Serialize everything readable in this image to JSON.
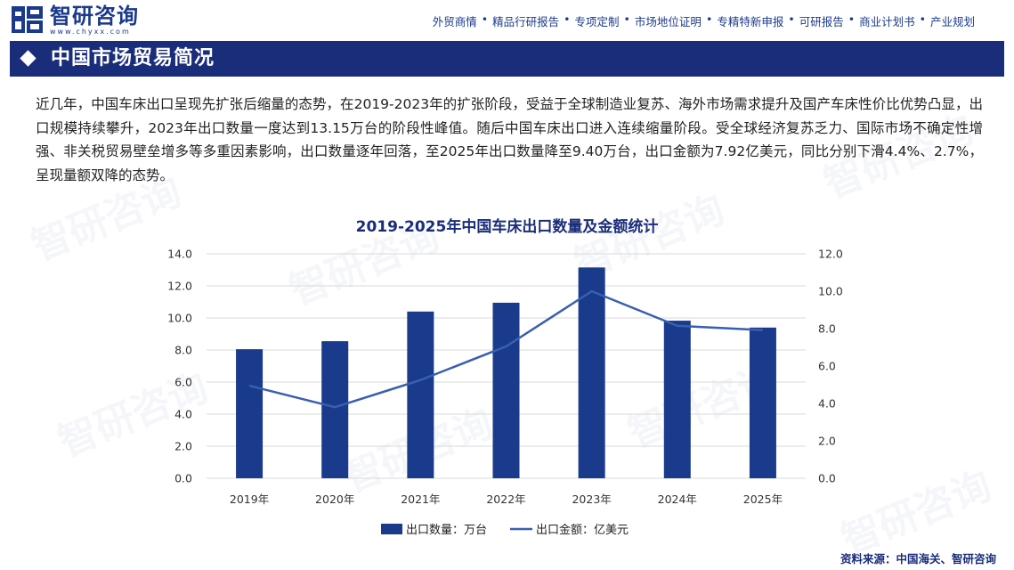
{
  "header": {
    "logo_text": "智研咨询",
    "logo_url": "www.chyxx.com",
    "nav": [
      "外贸商情",
      "精品行研报告",
      "专项定制",
      "市场地位证明",
      "专精特新申报",
      "可研报告",
      "商业计划书",
      "产业规划"
    ]
  },
  "section_title": "中国市场贸易简况",
  "paragraph": "近几年，中国车床出口呈现先扩张后缩量的态势，在2019-2023年的扩张阶段，受益于全球制造业复苏、海外市场需求提升及国产车床性价比优势凸显，出口规模持续攀升，2023年出口数量一度达到13.15万台的阶段性峰值。随后中国车床出口进入连续缩量阶段。受全球经济复苏乏力、国际市场不确定性增强、非关税贸易壁垒增多等多重因素影响，出口数量逐年回落，至2025年出口数量降至9.40万台，出口金额为7.92亿美元，同比分别下滑4.4%、2.7%，呈现量额双降的态势。",
  "chart_data": {
    "type": "bar+line",
    "title": "2019-2025年中国车床出口数量及金额统计",
    "categories": [
      "2019年",
      "2020年",
      "2021年",
      "2022年",
      "2023年",
      "2024年",
      "2025年"
    ],
    "series": [
      {
        "name": "出口数量：万台",
        "type": "bar",
        "axis": "left",
        "values": [
          8.05,
          8.55,
          10.4,
          10.95,
          13.15,
          9.83,
          9.4
        ]
      },
      {
        "name": "出口金额：亿美元",
        "type": "line",
        "axis": "right",
        "values": [
          4.95,
          3.8,
          5.25,
          7.05,
          10.0,
          8.15,
          7.92
        ]
      }
    ],
    "y_left": {
      "min": 0,
      "max": 14,
      "step": 2,
      "ticks": [
        "0.0",
        "2.0",
        "4.0",
        "6.0",
        "8.0",
        "10.0",
        "12.0",
        "14.0"
      ]
    },
    "y_right": {
      "min": 0,
      "max": 12,
      "step": 2,
      "ticks": [
        "0.0",
        "2.0",
        "4.0",
        "6.0",
        "8.0",
        "10.0",
        "12.0"
      ]
    },
    "grid": true,
    "legend": "bottom",
    "colors": {
      "bar": "#1a3a8c",
      "line": "#3a5fb0",
      "grid": "#d9d9d9"
    }
  },
  "source": "资料来源：中国海关、智研咨询"
}
